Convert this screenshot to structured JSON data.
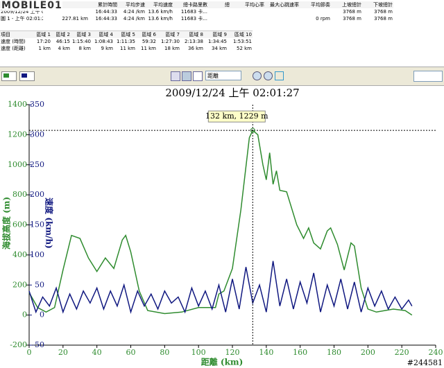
{
  "ui": {
    "logo": "MOBILE01",
    "summary": {
      "headers": [
        null,
        null,
        "累計時間",
        "平均步速",
        "平均速度",
        "總卡路里數",
        "總",
        "平均心率",
        "最大心跳速率",
        "平均節奏",
        "上坡總計",
        "下坡總計"
      ],
      "rows": [
        [
          "2009/12/24 上午 02...",
          null,
          "16:44:33",
          "4:24 /km",
          "13.6 km/h",
          "11683 卡...",
          null,
          null,
          null,
          null,
          "3768 m",
          "3768 m"
        ],
        [
          "圖 1 - 上午 02:01:27",
          "227.81 km",
          "16:44:33",
          "4:24 /km",
          "13.6 km/h",
          "11683 卡...",
          null,
          null,
          null,
          "0 rpm",
          "3768 m",
          "3768 m"
        ]
      ]
    },
    "zones": {
      "headers": [
        "項目",
        "區域 1",
        "區域 2",
        "區域 3",
        "區域 4",
        "區域 5",
        "區域 6",
        "區域 7",
        "區域 8",
        "區域 9",
        "區域 10"
      ],
      "rows": [
        [
          "速度 (時間)",
          "17:20",
          "46:15",
          "1:15:40",
          "1:08:43",
          "1:11:35",
          "59:32",
          "1:27:30",
          "2:13:38",
          "1:34:45",
          "1:53:51"
        ],
        [
          "速度 (距離)",
          "1 km",
          "4 km",
          "8 km",
          "9 km",
          "11 km",
          "11 km",
          "18 km",
          "36 km",
          "34 km",
          "52 km"
        ]
      ]
    },
    "toolbar": {
      "dropdown": "距離"
    },
    "watermark": "#244581"
  },
  "chart_data": {
    "type": "line",
    "title": "2009/12/24 上午 02:01:27",
    "xlabel": "距離 (km)",
    "ylabel": "海拔高度 (m)",
    "y2label": "速度 (km/h)",
    "annotation": "132 km, 1229 m",
    "cursor": {
      "x": 132,
      "y": 1229
    },
    "xlim": [
      0,
      240
    ],
    "xticks": [
      0,
      20,
      40,
      60,
      80,
      100,
      120,
      140,
      160,
      180,
      200,
      220,
      240
    ],
    "ylim": [
      -200,
      1400
    ],
    "yticks": [
      -200,
      0,
      200,
      400,
      600,
      800,
      1000,
      1200,
      1400
    ],
    "y2lim": [
      -50,
      350
    ],
    "y2ticks": [
      -50,
      0,
      50,
      100,
      150,
      200,
      250,
      300,
      350
    ],
    "grid": false,
    "series": [
      {
        "color": "#2e8b2e",
        "x": [
          0,
          5,
          10,
          15,
          20,
          25,
          30,
          35,
          40,
          45,
          50,
          55,
          57,
          60,
          65,
          70,
          80,
          90,
          100,
          110,
          112,
          115,
          120,
          125,
          130,
          132,
          135,
          138,
          140,
          142,
          144,
          146,
          148,
          152,
          158,
          162,
          165,
          168,
          172,
          176,
          178,
          182,
          186,
          190,
          192,
          196,
          200,
          205,
          215,
          222,
          226
        ],
        "values": [
          150,
          50,
          20,
          50,
          300,
          530,
          510,
          380,
          290,
          380,
          310,
          500,
          530,
          420,
          160,
          30,
          10,
          20,
          50,
          50,
          140,
          160,
          310,
          700,
          1180,
          1229,
          1200,
          1000,
          900,
          1080,
          870,
          960,
          830,
          820,
          600,
          510,
          580,
          480,
          440,
          560,
          580,
          470,
          300,
          480,
          460,
          180,
          40,
          20,
          40,
          30,
          0
        ]
      },
      {
        "color": "#101880",
        "axis": "y2",
        "x": [
          0,
          4,
          8,
          12,
          16,
          20,
          24,
          28,
          32,
          36,
          40,
          44,
          48,
          52,
          56,
          60,
          64,
          68,
          72,
          76,
          80,
          84,
          88,
          92,
          96,
          100,
          104,
          108,
          112,
          116,
          120,
          124,
          128,
          132,
          136,
          140,
          144,
          148,
          152,
          156,
          160,
          164,
          168,
          172,
          176,
          180,
          184,
          188,
          192,
          196,
          200,
          204,
          208,
          212,
          216,
          220,
          224,
          226
        ],
        "values": [
          40,
          5,
          30,
          15,
          45,
          5,
          35,
          10,
          40,
          20,
          45,
          10,
          40,
          15,
          50,
          5,
          40,
          15,
          35,
          10,
          40,
          20,
          30,
          5,
          45,
          15,
          40,
          10,
          50,
          5,
          60,
          10,
          80,
          20,
          50,
          5,
          90,
          15,
          60,
          10,
          55,
          20,
          70,
          5,
          50,
          15,
          60,
          10,
          55,
          5,
          45,
          15,
          40,
          10,
          30,
          10,
          25,
          15
        ]
      }
    ]
  }
}
